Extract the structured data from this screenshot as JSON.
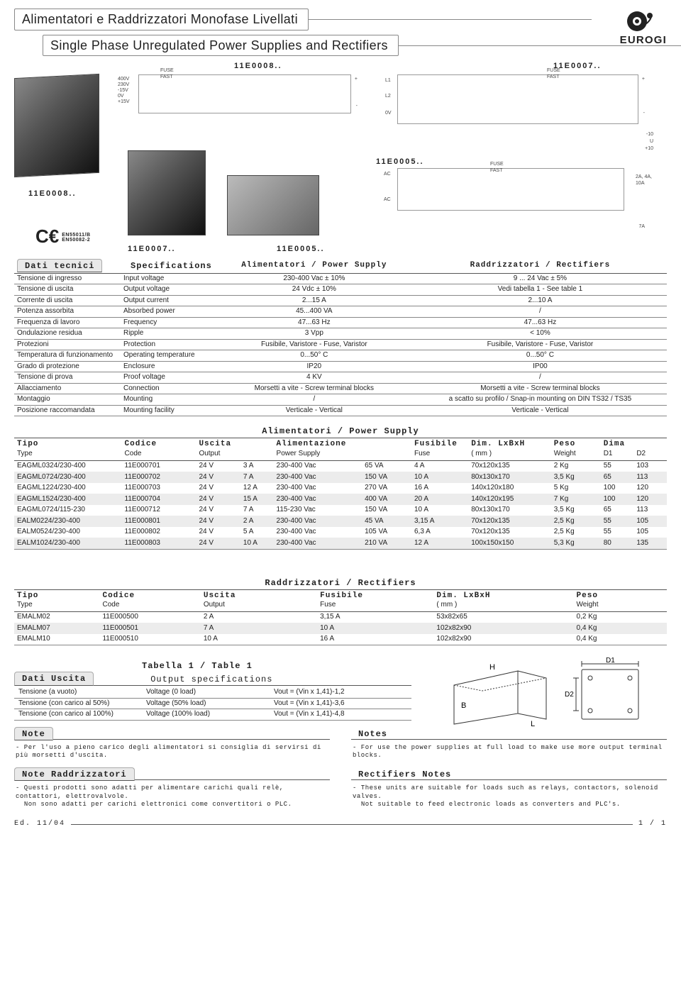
{
  "header": {
    "title_it": "Alimentatori e Raddrizzatori Monofase Livellati",
    "title_en": "Single Phase Unregulated Power Supplies and Rectifiers",
    "brand": "EUROGI"
  },
  "diagram_labels": {
    "d1": "11E0008..",
    "d2": "11E0007..",
    "d3": "11E0008..",
    "d4": "11E0007..",
    "d5": "11E0005..",
    "d6": "11E0005..",
    "fuse": "FUSE\nFAST",
    "volts": [
      "400V",
      "230V",
      "-15V",
      "0V",
      "+15V"
    ],
    "l1": "L1",
    "l2": "L2",
    "zv": "0V",
    "sig": [
      "-10",
      "U",
      "+10"
    ],
    "ac": "AC",
    "out1": "2A, 4A,\n10A",
    "out2": "7A",
    "ce1": "EN55011/B",
    "ce2": "EN50082-2"
  },
  "spec": {
    "heading_it": "Dati tecnici",
    "heading_en": "Specifications",
    "col3": "Alimentatori / Power Supply",
    "col4": "Raddrizzatori / Rectifiers",
    "rows": [
      [
        "Tensione di ingresso",
        "Input voltage",
        "230-400 Vac ± 10%",
        "9 ... 24 Vac ± 5%"
      ],
      [
        "Tensione di uscita",
        "Output voltage",
        "24 Vdc ± 10%",
        "Vedi tabella 1 - See table 1"
      ],
      [
        "Corrente di uscita",
        "Output current",
        "2...15 A",
        "2...10 A"
      ],
      [
        "Potenza assorbita",
        "Absorbed power",
        "45...400 VA",
        "/"
      ],
      [
        "Frequenza di lavoro",
        "Frequency",
        "47...63 Hz",
        "47...63 Hz"
      ],
      [
        "Ondulazione residua",
        "Ripple",
        "3 Vpp",
        "< 10%"
      ],
      [
        "Protezioni",
        "Protection",
        "Fusibile, Varistore - Fuse, Varistor",
        "Fusibile, Varistore - Fuse, Varistor"
      ],
      [
        "Temperatura di funzionamento",
        "Operating temperature",
        "0...50° C",
        "0...50° C"
      ],
      [
        "Grado di protezione",
        "Enclosure",
        "IP20",
        "IP00"
      ],
      [
        "Tensione di prova",
        "Proof voltage",
        "4 KV",
        "/"
      ],
      [
        "Allacciamento",
        "Connection",
        "Morsetti a vite - Screw terminal blocks",
        "Morsetti a vite - Screw terminal blocks"
      ],
      [
        "Montaggio",
        "Mounting",
        "/",
        "a scatto su profilo / Snap-in mounting on DIN TS32 / TS35"
      ],
      [
        "Posizione raccomandata",
        "Mounting facility",
        "Verticale - Vertical",
        "Verticale - Vertical"
      ]
    ]
  },
  "ps_table": {
    "title": "Alimentatori / Power Supply",
    "head1": [
      "Tipo",
      "Codice",
      "Uscita",
      "",
      "Alimentazione",
      "",
      "Fusibile",
      "Dim. LxBxH",
      "Peso",
      "Dima",
      ""
    ],
    "head2": [
      "Type",
      "Code",
      "Output",
      "",
      "Power Supply",
      "",
      "Fuse",
      "( mm )",
      "Weight",
      "D1",
      "D2"
    ],
    "rows": [
      [
        "EAGML0324/230-400",
        "11E000701",
        "24 V",
        "3 A",
        "230-400 Vac",
        "65 VA",
        "4 A",
        "70x120x135",
        "2 Kg",
        "55",
        "103"
      ],
      [
        "EAGML0724/230-400",
        "11E000702",
        "24 V",
        "7 A",
        "230-400 Vac",
        "150 VA",
        "10 A",
        "80x130x170",
        "3,5 Kg",
        "65",
        "113"
      ],
      [
        "EAGML1224/230-400",
        "11E000703",
        "24 V",
        "12 A",
        "230-400 Vac",
        "270 VA",
        "16 A",
        "140x120x180",
        "5 Kg",
        "100",
        "120"
      ],
      [
        "EAGML1524/230-400",
        "11E000704",
        "24 V",
        "15 A",
        "230-400 Vac",
        "400 VA",
        "20 A",
        "140x120x195",
        "7 Kg",
        "100",
        "120"
      ],
      [
        "EAGML0724/115-230",
        "11E000712",
        "24 V",
        "7 A",
        "115-230 Vac",
        "150 VA",
        "10 A",
        "80x130x170",
        "3,5 Kg",
        "65",
        "113"
      ],
      [
        "EALM0224/230-400",
        "11E000801",
        "24 V",
        "2 A",
        "230-400 Vac",
        "45 VA",
        "3,15 A",
        "70x120x135",
        "2,5 Kg",
        "55",
        "105"
      ],
      [
        "EALM0524/230-400",
        "11E000802",
        "24 V",
        "5 A",
        "230-400 Vac",
        "105 VA",
        "6,3 A",
        "70x120x135",
        "2,5 Kg",
        "55",
        "105"
      ],
      [
        "EALM1024/230-400",
        "11E000803",
        "24 V",
        "10 A",
        "230-400 Vac",
        "210 VA",
        "12 A",
        "100x150x150",
        "5,3 Kg",
        "80",
        "135"
      ]
    ]
  },
  "rect_table": {
    "title": "Raddrizzatori / Rectifiers",
    "head1": [
      "Tipo",
      "Codice",
      "Uscita",
      "Fusibile",
      "Dim. LxBxH",
      "Peso"
    ],
    "head2": [
      "Type",
      "Code",
      "Output",
      "Fuse",
      "( mm )",
      "Weight"
    ],
    "rows": [
      [
        "EMALM02",
        "11E000500",
        "2 A",
        "3,15 A",
        "53x82x65",
        "0,2 Kg"
      ],
      [
        "EMALM07",
        "11E000501",
        "7 A",
        "10 A",
        "102x82x90",
        "0,4 Kg"
      ],
      [
        "EMALM10",
        "11E000510",
        "10 A",
        "16 A",
        "102x82x90",
        "0,4 Kg"
      ]
    ]
  },
  "tab1": {
    "title": "Tabella 1 / Table 1",
    "h_it": "Dati Uscita",
    "h_en": "Output specifications",
    "rows": [
      [
        "Tensione (a vuoto)",
        "Voltage (0 load)",
        "Vout = (Vin x 1,41)-1,2"
      ],
      [
        "Tensione (con carico al 50%)",
        "Voltage (50% load)",
        "Vout = (Vin x 1,41)-3,6"
      ],
      [
        "Tensione (con carico al 100%)",
        "Voltage (100% load)",
        "Vout = (Vin x 1,41)-4,8"
      ]
    ],
    "dim": {
      "H": "H",
      "B": "B",
      "L": "L",
      "D1": "D1",
      "D2": "D2"
    }
  },
  "notes": {
    "h_it": "Note",
    "h_en": "Notes",
    "it": "- Per l'uso a pieno carico degli alimentatori si consiglia di servirsi di più morsetti d'uscita.",
    "en": "- For use the power supplies at full load to make use more output terminal blocks."
  },
  "rnotes": {
    "h_it": "Note Raddrizzatori",
    "h_en": "Rectifiers Notes",
    "it": "- Questi prodotti sono adatti per alimentare carichi quali relè, contattori, elettrovalvole.\n  Non sono adatti per carichi elettronici come convertitori o PLC.",
    "en": "- These units are suitable for loads such as relays, contactors, solenoid valves.\n  Not suitable to feed electronic loads as converters and PLC's."
  },
  "footer": {
    "left": "Ed. 11/04",
    "right": "1 / 1"
  }
}
